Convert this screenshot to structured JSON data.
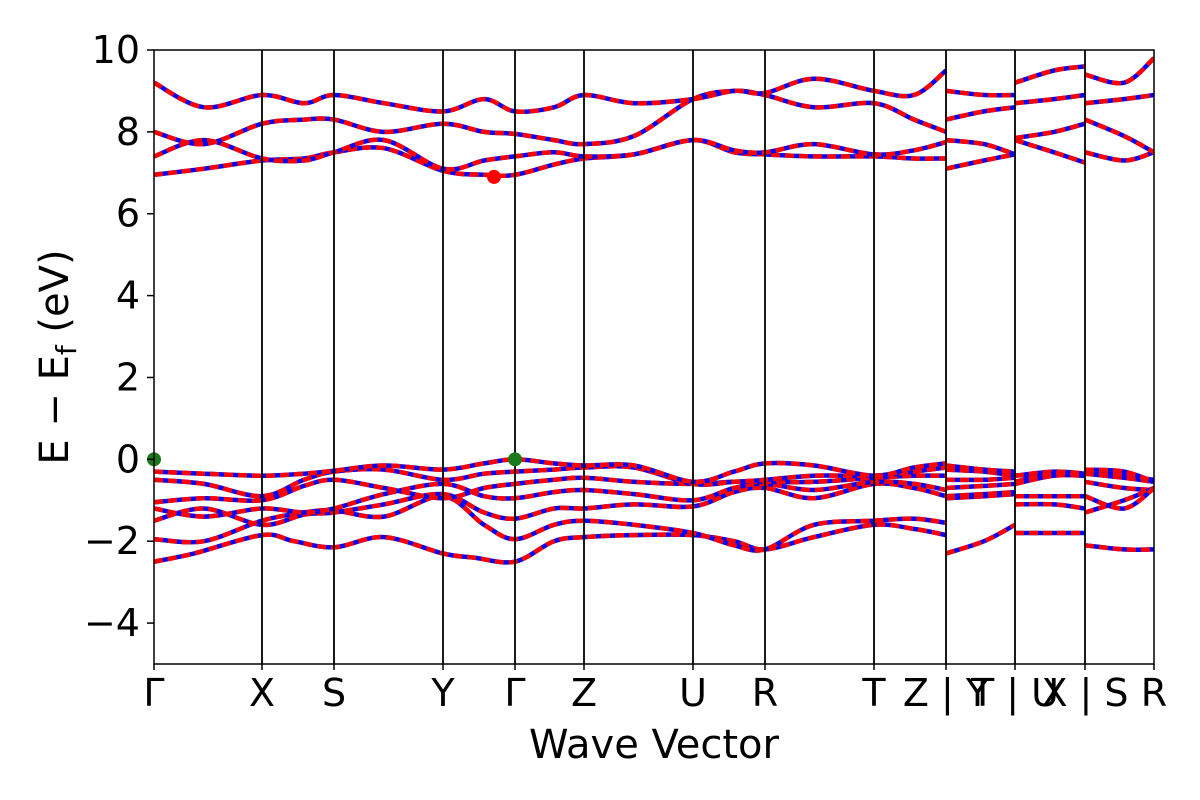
{
  "chart_data": {
    "type": "line",
    "title": "",
    "xlabel": "Wave Vector",
    "ylabel_parts": [
      "E − E",
      "f",
      " (eV)"
    ],
    "ylim": [
      -5,
      10
    ],
    "yticks": [
      -4,
      -2,
      0,
      2,
      4,
      6,
      8,
      10
    ],
    "ytick_labels": [
      "−4",
      "−2",
      "0",
      "2",
      "4",
      "6",
      "8",
      "10"
    ],
    "xlim": [
      0,
      1
    ],
    "kpoints": [
      {
        "label": "Γ",
        "x": 0.0
      },
      {
        "label": "X",
        "x": 0.108
      },
      {
        "label": "S",
        "x": 0.18
      },
      {
        "label": "Y",
        "x": 0.289
      },
      {
        "label": "Γ",
        "x": 0.361
      },
      {
        "label": "Z",
        "x": 0.43
      },
      {
        "label": "U",
        "x": 0.539
      },
      {
        "label": "R",
        "x": 0.611
      },
      {
        "label": "T",
        "x": 0.72
      },
      {
        "label": "Z | Y",
        "x": 0.792
      },
      {
        "label": "T | U",
        "x": 0.861
      },
      {
        "label": "X | S",
        "x": 0.931
      },
      {
        "label": "R",
        "x": 1.0
      }
    ],
    "series_colors": {
      "spin_up": "#0000ff",
      "spin_down": "#ff0000"
    },
    "vbm_points": [
      {
        "x": 0.0,
        "y": 0.0
      },
      {
        "x": 0.361,
        "y": 0.0
      }
    ],
    "cbm_point": {
      "x": 0.34,
      "y": 6.9
    },
    "vbm_color": "#1a7a1a",
    "cbm_color": "#ff0000",
    "bands": [
      [
        [
          0.0,
          -2.5
        ],
        [
          0.04,
          -2.3
        ],
        [
          0.108,
          -1.85
        ],
        [
          0.14,
          -2.0
        ],
        [
          0.18,
          -2.15
        ],
        [
          0.23,
          -1.9
        ],
        [
          0.289,
          -2.3
        ],
        [
          0.32,
          -2.4
        ],
        [
          0.361,
          -2.5
        ],
        [
          0.4,
          -2.0
        ],
        [
          0.43,
          -1.9
        ],
        [
          0.48,
          -1.85
        ],
        [
          0.539,
          -1.85
        ],
        [
          0.58,
          -2.0
        ],
        [
          0.611,
          -2.2
        ],
        [
          0.66,
          -1.9
        ],
        [
          0.72,
          -1.6
        ],
        [
          0.76,
          -1.7
        ],
        [
          0.792,
          -1.85
        ],
        [
          0.792,
          -2.3
        ],
        [
          0.83,
          -2.0
        ],
        [
          0.861,
          -1.6
        ],
        [
          0.861,
          -1.8
        ],
        [
          0.9,
          -1.8
        ],
        [
          0.931,
          -1.8
        ],
        [
          0.931,
          -2.1
        ],
        [
          0.97,
          -2.2
        ],
        [
          1.0,
          -2.2
        ]
      ],
      [
        [
          0.0,
          -1.95
        ],
        [
          0.05,
          -2.0
        ],
        [
          0.108,
          -1.5
        ],
        [
          0.15,
          -1.3
        ],
        [
          0.18,
          -1.25
        ],
        [
          0.23,
          -1.4
        ],
        [
          0.289,
          -0.9
        ],
        [
          0.33,
          -1.6
        ],
        [
          0.361,
          -1.95
        ],
        [
          0.4,
          -1.6
        ],
        [
          0.43,
          -1.5
        ],
        [
          0.48,
          -1.6
        ],
        [
          0.539,
          -1.8
        ],
        [
          0.58,
          -2.1
        ],
        [
          0.611,
          -2.2
        ],
        [
          0.66,
          -1.6
        ],
        [
          0.72,
          -1.5
        ],
        [
          0.76,
          -1.45
        ],
        [
          0.792,
          -1.55
        ],
        [
          0.792,
          -0.95
        ],
        [
          0.83,
          -0.9
        ],
        [
          0.861,
          -0.85
        ],
        [
          0.861,
          -1.1
        ],
        [
          0.9,
          -1.1
        ],
        [
          0.931,
          -1.2
        ],
        [
          0.931,
          -0.55
        ],
        [
          0.97,
          -0.7
        ],
        [
          1.0,
          -0.75
        ]
      ],
      [
        [
          0.0,
          -1.5
        ],
        [
          0.05,
          -1.2
        ],
        [
          0.108,
          -1.6
        ],
        [
          0.15,
          -1.35
        ],
        [
          0.18,
          -1.3
        ],
        [
          0.23,
          -1.1
        ],
        [
          0.289,
          -0.85
        ],
        [
          0.33,
          -1.3
        ],
        [
          0.361,
          -1.45
        ],
        [
          0.4,
          -1.2
        ],
        [
          0.43,
          -1.2
        ],
        [
          0.48,
          -1.1
        ],
        [
          0.539,
          -1.15
        ],
        [
          0.58,
          -0.8
        ],
        [
          0.611,
          -0.7
        ],
        [
          0.66,
          -0.95
        ],
        [
          0.72,
          -0.6
        ],
        [
          0.76,
          -0.7
        ],
        [
          0.792,
          -0.9
        ],
        [
          0.792,
          -0.9
        ],
        [
          0.83,
          -0.85
        ],
        [
          0.861,
          -0.8
        ],
        [
          0.861,
          -0.9
        ],
        [
          0.9,
          -0.9
        ],
        [
          0.931,
          -0.9
        ],
        [
          0.931,
          -1.3
        ],
        [
          0.97,
          -1.0
        ],
        [
          1.0,
          -0.7
        ]
      ],
      [
        [
          0.0,
          -1.2
        ],
        [
          0.05,
          -1.4
        ],
        [
          0.108,
          -1.2
        ],
        [
          0.15,
          -1.3
        ],
        [
          0.18,
          -1.2
        ],
        [
          0.23,
          -0.85
        ],
        [
          0.289,
          -0.6
        ],
        [
          0.33,
          -0.9
        ],
        [
          0.361,
          -0.95
        ],
        [
          0.4,
          -0.8
        ],
        [
          0.43,
          -0.75
        ],
        [
          0.48,
          -0.85
        ],
        [
          0.539,
          -1.0
        ],
        [
          0.58,
          -0.7
        ],
        [
          0.611,
          -0.6
        ],
        [
          0.66,
          -0.75
        ],
        [
          0.72,
          -0.55
        ],
        [
          0.76,
          -0.6
        ],
        [
          0.792,
          -0.75
        ],
        [
          0.792,
          -0.7
        ],
        [
          0.83,
          -0.65
        ],
        [
          0.861,
          -0.6
        ],
        [
          0.861,
          -0.4
        ],
        [
          0.9,
          -0.35
        ],
        [
          0.931,
          -0.4
        ],
        [
          0.931,
          -0.9
        ],
        [
          0.97,
          -1.2
        ],
        [
          1.0,
          -0.7
        ]
      ],
      [
        [
          0.0,
          -1.05
        ],
        [
          0.05,
          -0.95
        ],
        [
          0.108,
          -1.0
        ],
        [
          0.15,
          -0.65
        ],
        [
          0.18,
          -0.5
        ],
        [
          0.23,
          -0.7
        ],
        [
          0.289,
          -0.95
        ],
        [
          0.33,
          -0.7
        ],
        [
          0.361,
          -0.6
        ],
        [
          0.4,
          -0.5
        ],
        [
          0.43,
          -0.45
        ],
        [
          0.48,
          -0.55
        ],
        [
          0.539,
          -0.6
        ],
        [
          0.58,
          -0.55
        ],
        [
          0.611,
          -0.55
        ],
        [
          0.66,
          -0.55
        ],
        [
          0.72,
          -0.45
        ],
        [
          0.76,
          -0.4
        ],
        [
          0.792,
          -0.4
        ],
        [
          0.792,
          -0.5
        ],
        [
          0.83,
          -0.5
        ],
        [
          0.861,
          -0.45
        ],
        [
          0.861,
          -0.4
        ],
        [
          0.9,
          -0.3
        ],
        [
          0.931,
          -0.35
        ],
        [
          0.931,
          -0.35
        ],
        [
          0.97,
          -0.45
        ],
        [
          1.0,
          -0.55
        ]
      ],
      [
        [
          0.0,
          -0.5
        ],
        [
          0.05,
          -0.6
        ],
        [
          0.108,
          -0.9
        ],
        [
          0.15,
          -0.5
        ],
        [
          0.18,
          -0.3
        ],
        [
          0.23,
          -0.25
        ],
        [
          0.289,
          -0.5
        ],
        [
          0.33,
          -0.35
        ],
        [
          0.361,
          -0.3
        ],
        [
          0.4,
          -0.25
        ],
        [
          0.43,
          -0.2
        ],
        [
          0.48,
          -0.2
        ],
        [
          0.539,
          -0.6
        ],
        [
          0.58,
          -0.55
        ],
        [
          0.611,
          -0.5
        ],
        [
          0.66,
          -0.4
        ],
        [
          0.72,
          -0.4
        ],
        [
          0.76,
          -0.3
        ],
        [
          0.792,
          -0.2
        ],
        [
          0.792,
          -0.25
        ],
        [
          0.83,
          -0.3
        ],
        [
          0.861,
          -0.4
        ],
        [
          0.861,
          -0.6
        ],
        [
          0.9,
          -0.4
        ],
        [
          0.931,
          -0.4
        ],
        [
          0.931,
          -0.3
        ],
        [
          0.97,
          -0.4
        ],
        [
          1.0,
          -0.5
        ]
      ],
      [
        [
          0.0,
          -0.3
        ],
        [
          0.05,
          -0.35
        ],
        [
          0.108,
          -0.4
        ],
        [
          0.15,
          -0.35
        ],
        [
          0.18,
          -0.28
        ],
        [
          0.23,
          -0.15
        ],
        [
          0.289,
          -0.25
        ],
        [
          0.33,
          -0.1
        ],
        [
          0.361,
          0.0
        ],
        [
          0.4,
          -0.1
        ],
        [
          0.43,
          -0.15
        ],
        [
          0.48,
          -0.15
        ],
        [
          0.539,
          -0.55
        ],
        [
          0.58,
          -0.3
        ],
        [
          0.611,
          -0.1
        ],
        [
          0.66,
          -0.15
        ],
        [
          0.72,
          -0.4
        ],
        [
          0.76,
          -0.2
        ],
        [
          0.792,
          -0.1
        ],
        [
          0.792,
          -0.15
        ],
        [
          0.83,
          -0.25
        ],
        [
          0.861,
          -0.3
        ],
        [
          0.861,
          -0.55
        ],
        [
          0.9,
          -0.35
        ],
        [
          0.931,
          -0.35
        ],
        [
          0.931,
          -0.25
        ],
        [
          0.97,
          -0.3
        ],
        [
          1.0,
          -0.55
        ]
      ],
      [
        [
          0.0,
          6.95
        ],
        [
          0.05,
          7.1
        ],
        [
          0.108,
          7.3
        ],
        [
          0.15,
          7.35
        ],
        [
          0.18,
          7.5
        ],
        [
          0.23,
          7.6
        ],
        [
          0.289,
          7.05
        ],
        [
          0.33,
          6.95
        ],
        [
          0.361,
          6.95
        ],
        [
          0.4,
          7.2
        ],
        [
          0.43,
          7.35
        ],
        [
          0.48,
          7.45
        ],
        [
          0.539,
          7.8
        ],
        [
          0.58,
          7.5
        ],
        [
          0.611,
          7.45
        ],
        [
          0.66,
          7.4
        ],
        [
          0.72,
          7.4
        ],
        [
          0.76,
          7.35
        ],
        [
          0.792,
          7.35
        ],
        [
          0.792,
          7.1
        ],
        [
          0.83,
          7.3
        ],
        [
          0.861,
          7.45
        ],
        [
          0.861,
          7.8
        ],
        [
          0.9,
          7.5
        ],
        [
          0.931,
          7.25
        ],
        [
          0.931,
          7.5
        ],
        [
          0.97,
          7.3
        ],
        [
          1.0,
          7.5
        ]
      ],
      [
        [
          0.0,
          7.4
        ],
        [
          0.05,
          7.8
        ],
        [
          0.108,
          7.35
        ],
        [
          0.15,
          7.3
        ],
        [
          0.18,
          7.5
        ],
        [
          0.23,
          7.8
        ],
        [
          0.289,
          7.1
        ],
        [
          0.33,
          7.3
        ],
        [
          0.361,
          7.4
        ],
        [
          0.4,
          7.5
        ],
        [
          0.43,
          7.4
        ],
        [
          0.48,
          7.45
        ],
        [
          0.539,
          7.8
        ],
        [
          0.58,
          7.55
        ],
        [
          0.611,
          7.5
        ],
        [
          0.66,
          7.7
        ],
        [
          0.72,
          7.45
        ],
        [
          0.76,
          7.55
        ],
        [
          0.792,
          7.75
        ],
        [
          0.792,
          7.8
        ],
        [
          0.83,
          7.7
        ],
        [
          0.861,
          7.45
        ],
        [
          0.861,
          7.85
        ],
        [
          0.9,
          8.0
        ],
        [
          0.931,
          8.2
        ],
        [
          0.931,
          8.3
        ],
        [
          0.97,
          7.9
        ],
        [
          1.0,
          7.5
        ]
      ],
      [
        [
          0.0,
          8.0
        ],
        [
          0.05,
          7.7
        ],
        [
          0.108,
          8.2
        ],
        [
          0.15,
          8.3
        ],
        [
          0.18,
          8.3
        ],
        [
          0.23,
          8.0
        ],
        [
          0.289,
          8.2
        ],
        [
          0.33,
          8.0
        ],
        [
          0.361,
          7.95
        ],
        [
          0.4,
          7.8
        ],
        [
          0.43,
          7.7
        ],
        [
          0.48,
          7.9
        ],
        [
          0.539,
          8.8
        ],
        [
          0.58,
          9.0
        ],
        [
          0.611,
          8.9
        ],
        [
          0.66,
          8.6
        ],
        [
          0.72,
          8.7
        ],
        [
          0.76,
          8.3
        ],
        [
          0.792,
          8.0
        ],
        [
          0.792,
          8.3
        ],
        [
          0.83,
          8.5
        ],
        [
          0.861,
          8.6
        ],
        [
          0.861,
          8.7
        ],
        [
          0.9,
          8.8
        ],
        [
          0.931,
          8.9
        ],
        [
          0.931,
          8.7
        ],
        [
          0.97,
          8.8
        ],
        [
          1.0,
          8.9
        ]
      ],
      [
        [
          0.0,
          9.2
        ],
        [
          0.05,
          8.6
        ],
        [
          0.108,
          8.9
        ],
        [
          0.15,
          8.7
        ],
        [
          0.18,
          8.9
        ],
        [
          0.23,
          8.7
        ],
        [
          0.289,
          8.5
        ],
        [
          0.33,
          8.8
        ],
        [
          0.361,
          8.5
        ],
        [
          0.4,
          8.6
        ],
        [
          0.43,
          8.9
        ],
        [
          0.48,
          8.7
        ],
        [
          0.539,
          8.8
        ],
        [
          0.58,
          9.0
        ],
        [
          0.611,
          8.95
        ],
        [
          0.66,
          9.3
        ],
        [
          0.72,
          9.0
        ],
        [
          0.76,
          8.9
        ],
        [
          0.792,
          9.5
        ],
        [
          0.792,
          9.0
        ],
        [
          0.83,
          8.9
        ],
        [
          0.861,
          8.9
        ],
        [
          0.861,
          9.2
        ],
        [
          0.9,
          9.5
        ],
        [
          0.931,
          9.6
        ],
        [
          0.931,
          9.4
        ],
        [
          0.97,
          9.2
        ],
        [
          1.0,
          9.8
        ]
      ]
    ]
  }
}
